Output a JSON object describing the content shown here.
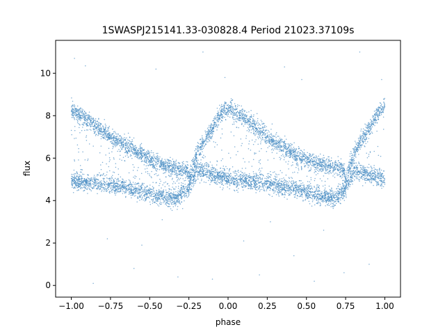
{
  "chart_data": {
    "type": "scatter",
    "title": "1SWASPJ215141.33-030828.4 Period 21023.37109s",
    "xlabel": "phase",
    "ylabel": "flux",
    "xlim": [
      -1.1,
      1.1
    ],
    "ylim": [
      -0.55,
      11.55
    ],
    "xticks": [
      -1.0,
      -0.75,
      -0.5,
      -0.25,
      0.0,
      0.25,
      0.5,
      0.75,
      1.0
    ],
    "xtick_labels": [
      "−1.00",
      "−0.75",
      "−0.50",
      "−0.25",
      "0.00",
      "0.25",
      "0.50",
      "0.75",
      "1.00"
    ],
    "yticks": [
      0,
      2,
      4,
      6,
      8,
      10
    ],
    "ytick_labels": [
      "0",
      "2",
      "4",
      "6",
      "8",
      "10"
    ],
    "grid": false,
    "marker_color": "#4c8fc4",
    "series": [
      {
        "points": [
          [
            -1.0,
            8.3
          ],
          [
            -0.9,
            7.8
          ],
          [
            -0.75,
            7.0
          ],
          [
            -0.6,
            6.4
          ],
          [
            -0.5,
            5.9
          ],
          [
            -0.4,
            5.6
          ],
          [
            -0.3,
            5.45
          ],
          [
            -0.26,
            5.4
          ],
          [
            -0.25,
            5.0
          ],
          [
            -0.2,
            6.2
          ],
          [
            -0.1,
            7.4
          ],
          [
            -0.05,
            8.1
          ],
          [
            0.0,
            8.4
          ],
          [
            0.1,
            7.9
          ],
          [
            0.25,
            7.0
          ],
          [
            0.4,
            6.3
          ],
          [
            0.5,
            5.9
          ],
          [
            0.6,
            5.7
          ],
          [
            0.74,
            5.45
          ],
          [
            0.75,
            5.0
          ],
          [
            0.8,
            6.2
          ],
          [
            0.9,
            7.4
          ],
          [
            0.95,
            8.1
          ],
          [
            1.0,
            8.4
          ]
        ]
      },
      {
        "points": [
          [
            -1.0,
            4.9
          ],
          [
            -0.8,
            4.8
          ],
          [
            -0.6,
            4.55
          ],
          [
            -0.45,
            4.2
          ],
          [
            -0.33,
            4.1
          ],
          [
            -0.25,
            4.5
          ],
          [
            -0.2,
            5.4
          ],
          [
            0.0,
            5.0
          ],
          [
            0.25,
            4.8
          ],
          [
            0.45,
            4.5
          ],
          [
            0.6,
            4.2
          ],
          [
            0.67,
            4.1
          ],
          [
            0.75,
            4.5
          ],
          [
            0.8,
            5.4
          ],
          [
            1.0,
            5.0
          ]
        ]
      }
    ],
    "outliers": [
      [
        -0.98,
        10.7
      ],
      [
        -0.91,
        10.35
      ],
      [
        -0.77,
        2.2
      ],
      [
        -0.6,
        0.8
      ],
      [
        -0.55,
        1.9
      ],
      [
        -0.46,
        10.2
      ],
      [
        -0.32,
        0.4
      ],
      [
        -0.16,
        11.0
      ],
      [
        -0.1,
        0.3
      ],
      [
        -0.02,
        9.8
      ],
      [
        0.1,
        2.1
      ],
      [
        0.2,
        0.5
      ],
      [
        0.36,
        10.3
      ],
      [
        0.42,
        1.4
      ],
      [
        0.55,
        0.2
      ],
      [
        0.61,
        2.6
      ],
      [
        0.74,
        0.6
      ],
      [
        0.84,
        11.0
      ],
      [
        0.9,
        1.0
      ],
      [
        0.98,
        9.7
      ],
      [
        -0.86,
        0.1
      ],
      [
        0.27,
        3.0
      ],
      [
        -0.42,
        3.1
      ],
      [
        0.47,
        9.7
      ]
    ]
  }
}
